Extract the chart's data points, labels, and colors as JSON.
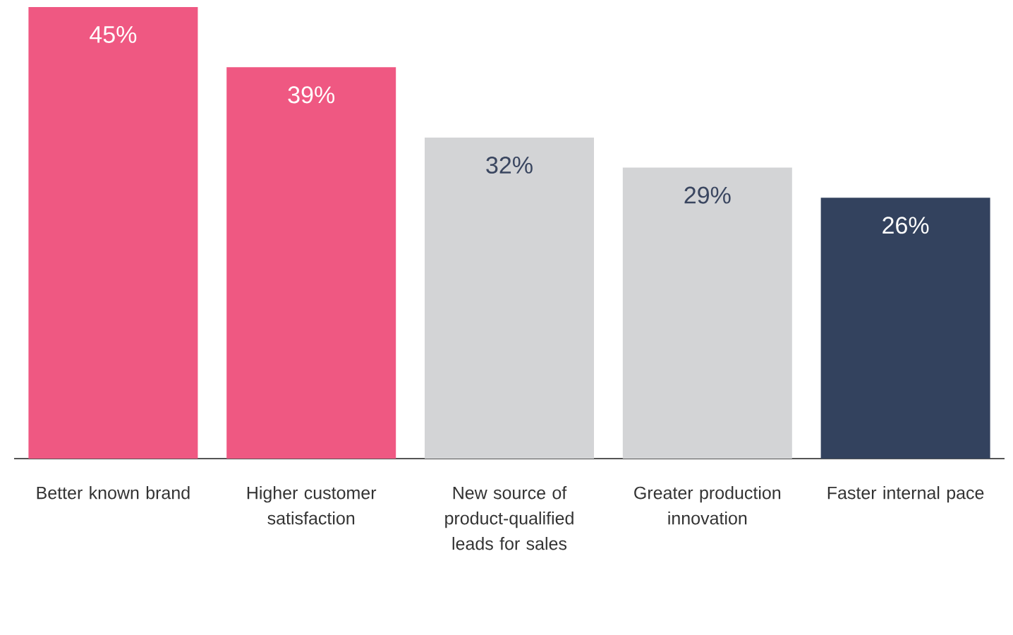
{
  "chart_data": {
    "type": "bar",
    "categories": [
      "Better known brand",
      "Higher customer satisfaction",
      "New source of product-qualified leads for sales",
      "Greater production innovation",
      "Faster internal pace"
    ],
    "values": [
      45,
      39,
      32,
      29,
      26
    ],
    "colors": [
      "#ef5882",
      "#ef5882",
      "#d3d4d6",
      "#d3d4d6",
      "#33425e"
    ],
    "value_labels": [
      "45%",
      "39%",
      "32%",
      "29%",
      "26%"
    ]
  }
}
